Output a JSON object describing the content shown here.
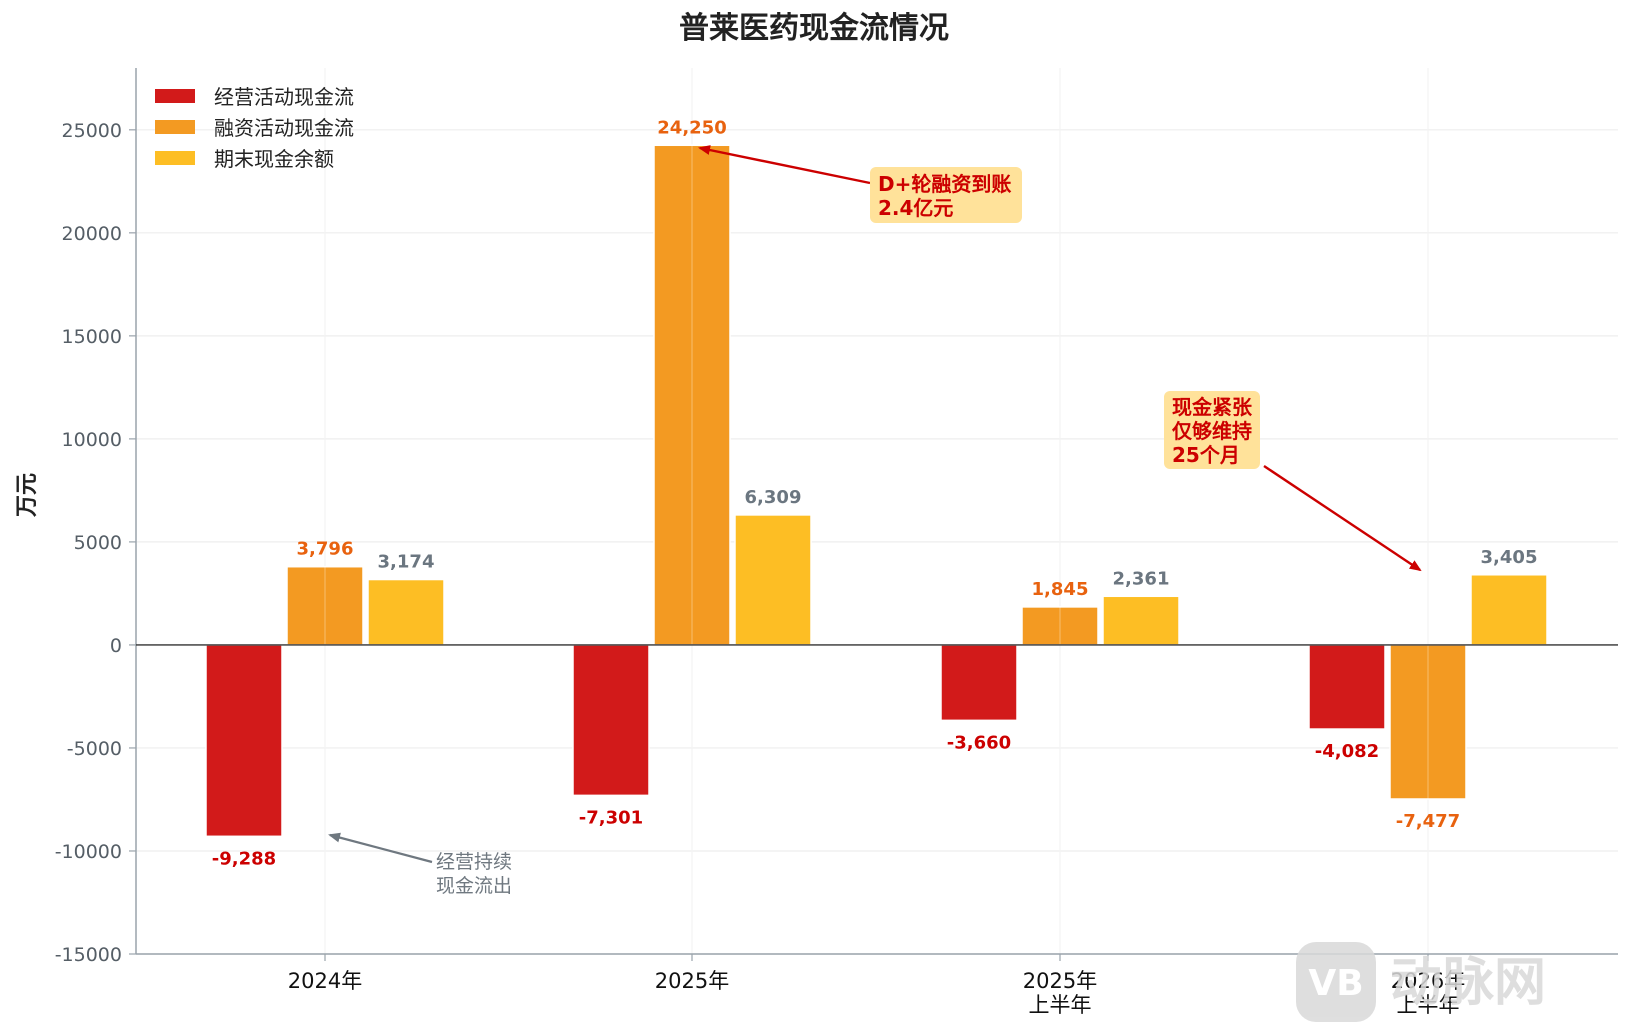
{
  "chart_data": {
    "type": "bar",
    "title": "普莱医药现金流情况",
    "ylabel": "万元",
    "xlabel": "",
    "ylim": [
      -15000,
      28000
    ],
    "yticks": [
      25000,
      20000,
      15000,
      10000,
      5000,
      0,
      -5000,
      -10000,
      -15000
    ],
    "categories": [
      [
        "2024年"
      ],
      [
        "2025年"
      ],
      [
        "2025年",
        "上半年"
      ],
      [
        "2026年",
        "上半年"
      ]
    ],
    "series": [
      {
        "name": "经营活动现金流",
        "color": "#d21a1a",
        "label_color": "#cc0000",
        "values": [
          -9288,
          -7301,
          -3660,
          -4082
        ],
        "labels": [
          "-9,288",
          "-7,301",
          "-3,660",
          "-4,082"
        ]
      },
      {
        "name": "融资活动现金流",
        "color": "#f39a22",
        "label_color": "#e8620f",
        "values": [
          3796,
          24250,
          1845,
          -7477
        ],
        "labels": [
          "3,796",
          "24,250",
          "1,845",
          "-7,477"
        ]
      },
      {
        "name": "期末现金余额",
        "color": "#fdbe24",
        "label_color": "#6b7680",
        "values": [
          3174,
          6309,
          2361,
          3405
        ],
        "labels": [
          "3,174",
          "6,309",
          "2,361",
          "3,405"
        ]
      }
    ],
    "legend": "top-left",
    "grid": true,
    "annotations": [
      {
        "lines": [
          "D+轮融资到账",
          "2.4亿元"
        ],
        "style": "box"
      },
      {
        "lines": [
          "现金紧张",
          "仅够维持",
          "25个月"
        ],
        "style": "box"
      },
      {
        "lines": [
          "经营持续",
          "现金流出"
        ],
        "style": "plain"
      }
    ]
  },
  "watermark": {
    "text": "动脉网",
    "badge": "VB"
  }
}
